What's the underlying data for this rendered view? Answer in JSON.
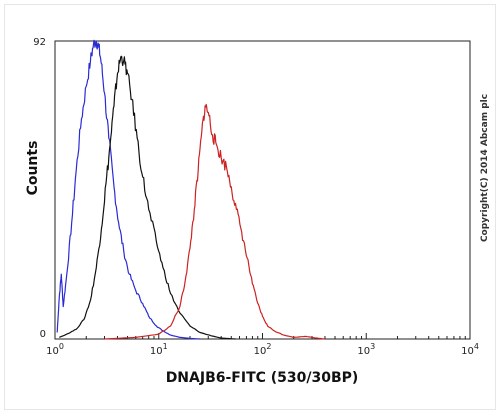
{
  "chart_data": {
    "type": "line",
    "xlabel": "DNAJB6-FITC (530/30BP)",
    "ylabel": "Counts",
    "x_scale": "log",
    "xlim": [
      1,
      10000
    ],
    "ylim": [
      0,
      92
    ],
    "x_ticks": [
      {
        "value": 1,
        "base": "10",
        "exp": "0"
      },
      {
        "value": 10,
        "base": "10",
        "exp": "1"
      },
      {
        "value": 100,
        "base": "10",
        "exp": "2"
      },
      {
        "value": 1000,
        "base": "10",
        "exp": "3"
      },
      {
        "value": 10000,
        "base": "10",
        "exp": "4"
      }
    ],
    "y_ticks": [
      {
        "value": 0,
        "label": "0"
      },
      {
        "value": 92,
        "label": "92"
      }
    ],
    "annotation": "Copyright(C) 2014 Abcam plc",
    "grid": false,
    "legend": "none",
    "series": [
      {
        "color": "#2b2bd6",
        "points": [
          [
            1.05,
            2
          ],
          [
            1.1,
            13
          ],
          [
            1.15,
            20
          ],
          [
            1.2,
            10
          ],
          [
            1.3,
            20
          ],
          [
            1.45,
            36
          ],
          [
            1.6,
            52
          ],
          [
            1.8,
            68
          ],
          [
            2.0,
            78
          ],
          [
            2.2,
            86
          ],
          [
            2.35,
            91
          ],
          [
            2.5,
            92
          ],
          [
            2.65,
            90
          ],
          [
            2.8,
            85
          ],
          [
            3.0,
            76
          ],
          [
            3.3,
            62
          ],
          [
            3.7,
            47
          ],
          [
            4.1,
            36
          ],
          [
            4.6,
            27
          ],
          [
            5.2,
            20
          ],
          [
            6.0,
            15
          ],
          [
            7.0,
            11
          ],
          [
            8.0,
            7
          ],
          [
            9.5,
            4
          ],
          [
            11,
            2.5
          ],
          [
            13,
            1.2
          ],
          [
            16,
            0.5
          ],
          [
            20,
            0.2
          ],
          [
            25,
            0
          ]
        ]
      },
      {
        "color": "#111111",
        "points": [
          [
            1.1,
            0.5
          ],
          [
            1.3,
            1.5
          ],
          [
            1.6,
            3
          ],
          [
            1.9,
            6
          ],
          [
            2.2,
            12
          ],
          [
            2.5,
            22
          ],
          [
            2.8,
            34
          ],
          [
            3.1,
            48
          ],
          [
            3.4,
            60
          ],
          [
            3.7,
            72
          ],
          [
            4.0,
            82
          ],
          [
            4.3,
            87
          ],
          [
            4.6,
            86
          ],
          [
            5.0,
            82
          ],
          [
            5.5,
            74
          ],
          [
            6.2,
            62
          ],
          [
            7.0,
            50
          ],
          [
            8.0,
            40
          ],
          [
            9.5,
            30
          ],
          [
            11,
            22
          ],
          [
            13,
            14
          ],
          [
            16,
            8
          ],
          [
            20,
            4
          ],
          [
            25,
            2
          ],
          [
            32,
            1
          ],
          [
            40,
            0.3
          ],
          [
            55,
            0
          ]
        ]
      },
      {
        "color": "#cc2222",
        "points": [
          [
            3,
            0
          ],
          [
            6,
            0.5
          ],
          [
            10,
            1.5
          ],
          [
            13,
            4
          ],
          [
            16,
            10
          ],
          [
            18,
            18
          ],
          [
            20,
            28
          ],
          [
            22,
            40
          ],
          [
            24,
            52
          ],
          [
            26,
            64
          ],
          [
            28,
            72
          ],
          [
            30,
            70
          ],
          [
            33,
            63
          ],
          [
            36,
            60
          ],
          [
            40,
            56
          ],
          [
            45,
            53
          ],
          [
            50,
            47
          ],
          [
            56,
            40
          ],
          [
            63,
            33
          ],
          [
            71,
            25
          ],
          [
            80,
            17
          ],
          [
            90,
            11
          ],
          [
            100,
            7
          ],
          [
            112,
            4
          ],
          [
            130,
            2.5
          ],
          [
            160,
            1.2
          ],
          [
            200,
            0.5
          ],
          [
            260,
            0.8
          ],
          [
            330,
            0.3
          ],
          [
            400,
            0
          ]
        ]
      }
    ]
  }
}
